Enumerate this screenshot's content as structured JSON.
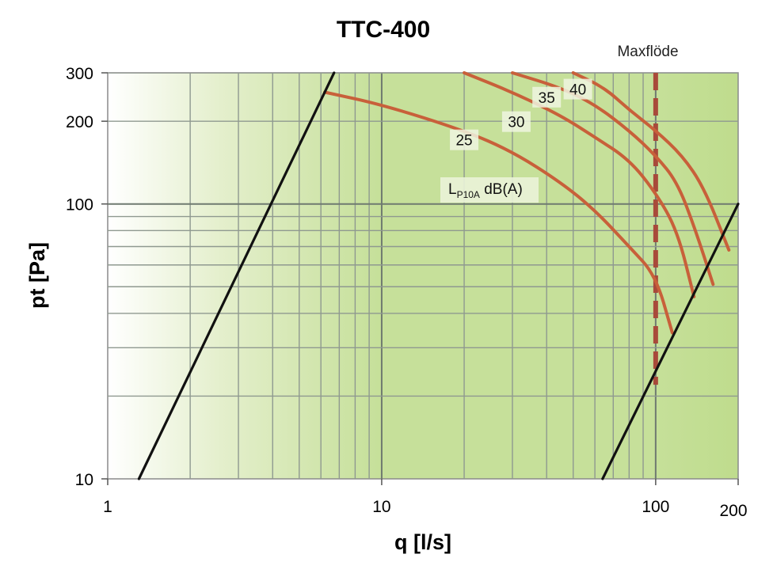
{
  "chart_data": {
    "type": "line",
    "title": "TTC-400",
    "xlabel": "q [l/s]",
    "ylabel": "pt [Pa]",
    "x_scale": "log",
    "y_scale": "log",
    "xlim": [
      1,
      200
    ],
    "ylim": [
      10,
      300
    ],
    "x_ticks": [
      {
        "value": 1,
        "label": "1"
      },
      {
        "value": 10,
        "label": "10"
      },
      {
        "value": 100,
        "label": "100"
      },
      {
        "value": 200,
        "label": "200"
      }
    ],
    "y_ticks": [
      {
        "value": 10,
        "label": "10"
      },
      {
        "value": 100,
        "label": "100"
      },
      {
        "value": 200,
        "label": "200"
      },
      {
        "value": 300,
        "label": "300"
      }
    ],
    "grid": true,
    "background": "green gradient (white at left to light green at right)",
    "curve_color": "#c8603a",
    "limit_color": "#111111",
    "maxflode_color": "#a84a3a",
    "sound_curves": [
      {
        "label": "25",
        "points": [
          [
            6.2,
            255
          ],
          [
            10,
            230
          ],
          [
            20,
            185
          ],
          [
            30,
            155
          ],
          [
            45,
            120
          ],
          [
            60,
            95
          ],
          [
            80,
            70
          ],
          [
            100,
            55
          ],
          [
            115,
            34
          ]
        ],
        "label_at": [
          20,
          170
        ]
      },
      {
        "label": "30",
        "points": [
          [
            20,
            300
          ],
          [
            30,
            255
          ],
          [
            45,
            210
          ],
          [
            60,
            175
          ],
          [
            80,
            145
          ],
          [
            100,
            110
          ],
          [
            120,
            80
          ],
          [
            138,
            46
          ]
        ],
        "label_at": [
          31,
          198
        ]
      },
      {
        "label": "35",
        "points": [
          [
            30,
            300
          ],
          [
            45,
            265
          ],
          [
            60,
            230
          ],
          [
            80,
            185
          ],
          [
            100,
            150
          ],
          [
            120,
            120
          ],
          [
            140,
            80
          ],
          [
            162,
            51
          ]
        ],
        "label_at": [
          40,
          243
        ]
      },
      {
        "label": "40",
        "points": [
          [
            50,
            300
          ],
          [
            65,
            265
          ],
          [
            80,
            220
          ],
          [
            100,
            185
          ],
          [
            125,
            150
          ],
          [
            150,
            115
          ],
          [
            185,
            68
          ]
        ],
        "label_at": [
          52,
          260
        ]
      }
    ],
    "limit_lines": [
      {
        "points": [
          [
            1.3,
            10
          ],
          [
            6.7,
            300
          ]
        ]
      },
      {
        "points": [
          [
            64,
            10
          ],
          [
            200,
            100
          ]
        ]
      }
    ],
    "maxflode": {
      "x": 100,
      "label": "Maxflöde",
      "y_range": [
        22,
        300
      ]
    },
    "curve_family_label": {
      "main": "L",
      "sub": "P10A",
      "suffix": " dB(A)"
    }
  }
}
